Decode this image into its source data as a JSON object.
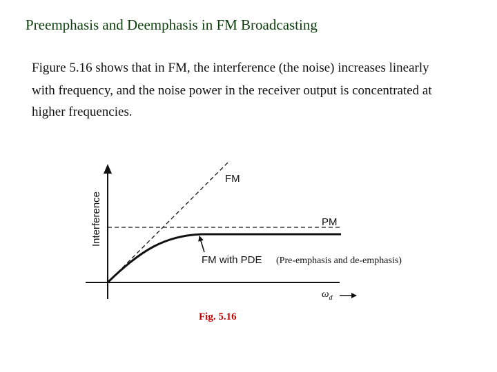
{
  "slide": {
    "title": "Preemphasis and Deemphasis in FM Broadcasting",
    "paragraph_lines": [
      "Figure 5.16 shows that in FM, the interference (the noise) increases linearly",
      "with frequency,  and the noise power in the receiver output is concentrated at",
      "higher frequencies."
    ]
  },
  "figure": {
    "y_axis_label": "Interference",
    "x_axis_symbol": "ω",
    "x_axis_subscript": "d",
    "curve_labels": {
      "fm": "FM",
      "pm": "PM",
      "fm_pde": "FM with PDE",
      "fm_pde_note": "(Pre-emphasis and de-emphasis)"
    },
    "caption": "Fig. 5.16"
  }
}
